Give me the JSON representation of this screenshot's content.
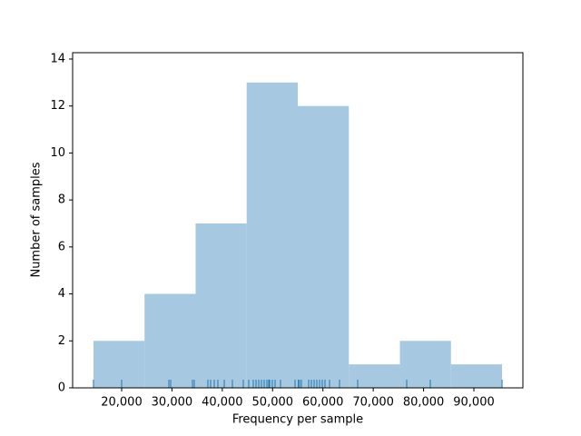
{
  "chart_data": {
    "type": "histogram",
    "xlabel": "Frequency per sample",
    "ylabel": "Number of samples",
    "bins": [
      14400,
      24550,
      34700,
      44850,
      55000,
      65150,
      75300,
      85450,
      95600
    ],
    "counts": [
      2,
      4,
      7,
      13,
      12,
      1,
      2,
      1
    ],
    "color": "#a6c8e0",
    "rug": [
      14400,
      20000,
      29381,
      29742,
      34071,
      34432,
      37138,
      37679,
      38401,
      39122,
      40385,
      42009,
      44174,
      45256,
      46158,
      46699,
      47240,
      47782,
      48323,
      48864,
      49225,
      49405,
      49946,
      50488,
      51570,
      54456,
      55100,
      55358,
      55719,
      57162,
      57703,
      58245,
      58786,
      59327,
      59868,
      60410,
      61312,
      63296,
      66904,
      76646,
      81336,
      95600
    ],
    "rug_color": "#1f77b4",
    "xlim": [
      10260,
      99740
    ],
    "xticks": [
      {
        "value": 20000,
        "label": "20,000"
      },
      {
        "value": 30000,
        "label": "30,000"
      },
      {
        "value": 40000,
        "label": "40,000"
      },
      {
        "value": 50000,
        "label": "50,000"
      },
      {
        "value": 60000,
        "label": "60,000"
      },
      {
        "value": 70000,
        "label": "70,000"
      },
      {
        "value": 80000,
        "label": "80,000"
      },
      {
        "value": 90000,
        "label": "90,000"
      }
    ],
    "ylim": [
      0,
      14.27
    ],
    "yticks": [
      0,
      2,
      4,
      6,
      8,
      10,
      12,
      14
    ]
  }
}
